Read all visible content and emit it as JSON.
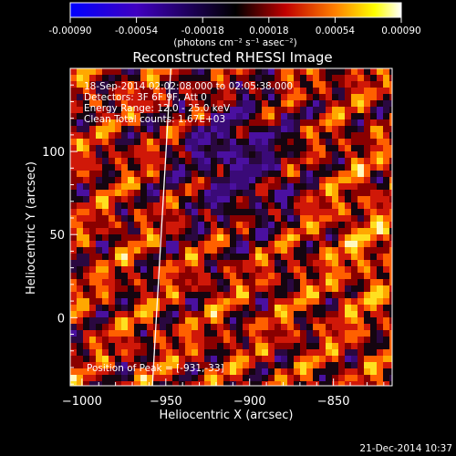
{
  "colorbar": {
    "tick_labels": [
      "-0.00090",
      "-0.00054",
      "-0.00018",
      "0.00018",
      "0.00054",
      "0.00090"
    ],
    "tick_values": [
      -0.0009,
      -0.00054,
      -0.00018,
      0.00018,
      0.00054,
      0.0009
    ],
    "range": [
      -0.0009,
      0.0009
    ],
    "units_label": "(photons cm⁻² s⁻¹ asec⁻²)",
    "colors": [
      "#0000ff",
      "#4000c0",
      "#000000",
      "#c00000",
      "#ff8000",
      "#ffff00",
      "#ffffff"
    ]
  },
  "chart_data": {
    "type": "heatmap",
    "title": "Reconstructed RHESSI Image",
    "xlabel": "Heliocentric X (arcsec)",
    "ylabel": "Heliocentric Y (arcsec)",
    "xlim": [
      -1007,
      -815
    ],
    "ylim": [
      -41,
      150
    ],
    "x_ticks": [
      -1000,
      -950,
      -900,
      -850
    ],
    "x_tick_labels": [
      "−1000",
      "−950",
      "−900",
      "−850"
    ],
    "y_ticks": [
      0,
      50,
      100
    ],
    "y_tick_labels": [
      "0",
      "50",
      "100"
    ],
    "annotations": {
      "time_range": "18-Sep-2014 02:02:08.000 to 02:05:38.000",
      "detectors": "Detectors: 3F 6F 9F, Att 0",
      "energy": "Energy Range: 12.0 - 25.0 keV",
      "method": "Clean     Total counts: 1.67E+03",
      "peak": "Position of Peak = [-931,-33]"
    },
    "limb_line": {
      "x": [
        -947,
        -958
      ],
      "y": [
        150,
        -41
      ]
    },
    "grid": false
  },
  "timestamp": "21-Dec-2014 10:37"
}
